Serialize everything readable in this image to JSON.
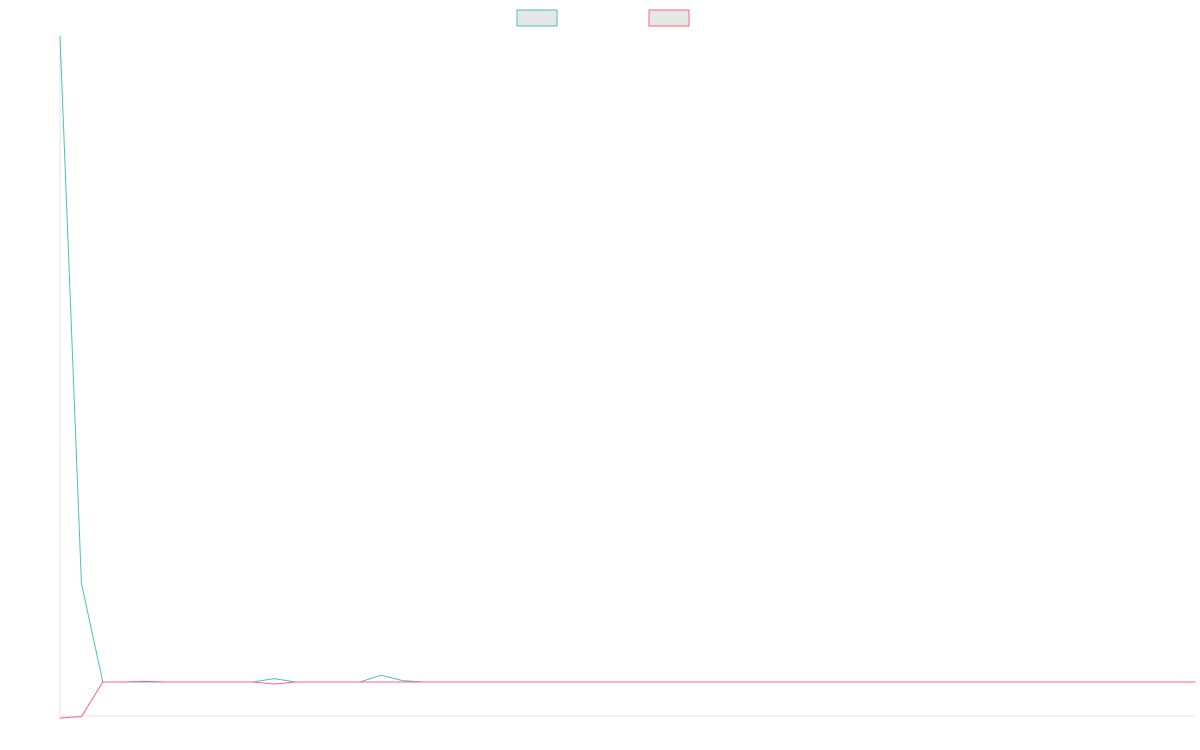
{
  "chart_data": {
    "type": "line",
    "title": "",
    "xlabel": "",
    "ylabel": "",
    "grid": false,
    "legend_position": "top-center",
    "x": [
      0,
      1,
      2,
      3,
      4,
      5,
      6,
      7,
      8,
      9,
      10,
      11,
      12,
      13,
      14,
      15,
      16,
      17,
      18,
      19,
      20,
      21,
      22,
      23,
      24,
      25,
      26,
      27,
      28,
      29,
      30,
      31,
      32,
      33,
      34,
      35,
      36,
      37,
      38,
      39,
      40,
      41,
      42,
      43,
      44,
      45,
      46,
      47,
      48,
      49,
      50,
      51,
      52,
      53
    ],
    "xlim": [
      0,
      53
    ],
    "ylim": [
      -5,
      95
    ],
    "series": [
      {
        "name": "",
        "color": "#4bc0c0",
        "values": [
          95,
          14.5,
          0,
          0,
          0,
          0,
          0,
          0,
          0,
          0,
          0.5,
          0,
          0,
          0,
          0,
          1,
          0.2,
          0,
          0,
          0,
          0,
          0,
          0,
          0,
          0,
          0,
          0,
          0,
          0,
          0,
          0,
          0,
          0,
          0,
          0,
          0,
          0,
          0,
          0,
          0,
          0,
          0,
          0,
          0,
          0,
          0,
          0,
          0,
          0,
          0,
          0,
          0,
          0,
          0
        ]
      },
      {
        "name": "",
        "color": "#ff6384",
        "values": [
          -5.3,
          -5.1,
          0,
          0,
          0.1,
          0,
          0,
          0,
          0,
          0,
          -0.3,
          0,
          0,
          0,
          0,
          0,
          0,
          0,
          0,
          0,
          0,
          0,
          0,
          0,
          0,
          0,
          0,
          0,
          0,
          0,
          0,
          0,
          0,
          0,
          0,
          0,
          0,
          0,
          0,
          0,
          0,
          0,
          0,
          0,
          0,
          0,
          0,
          0,
          0,
          0,
          0,
          0,
          0,
          0
        ]
      }
    ]
  }
}
